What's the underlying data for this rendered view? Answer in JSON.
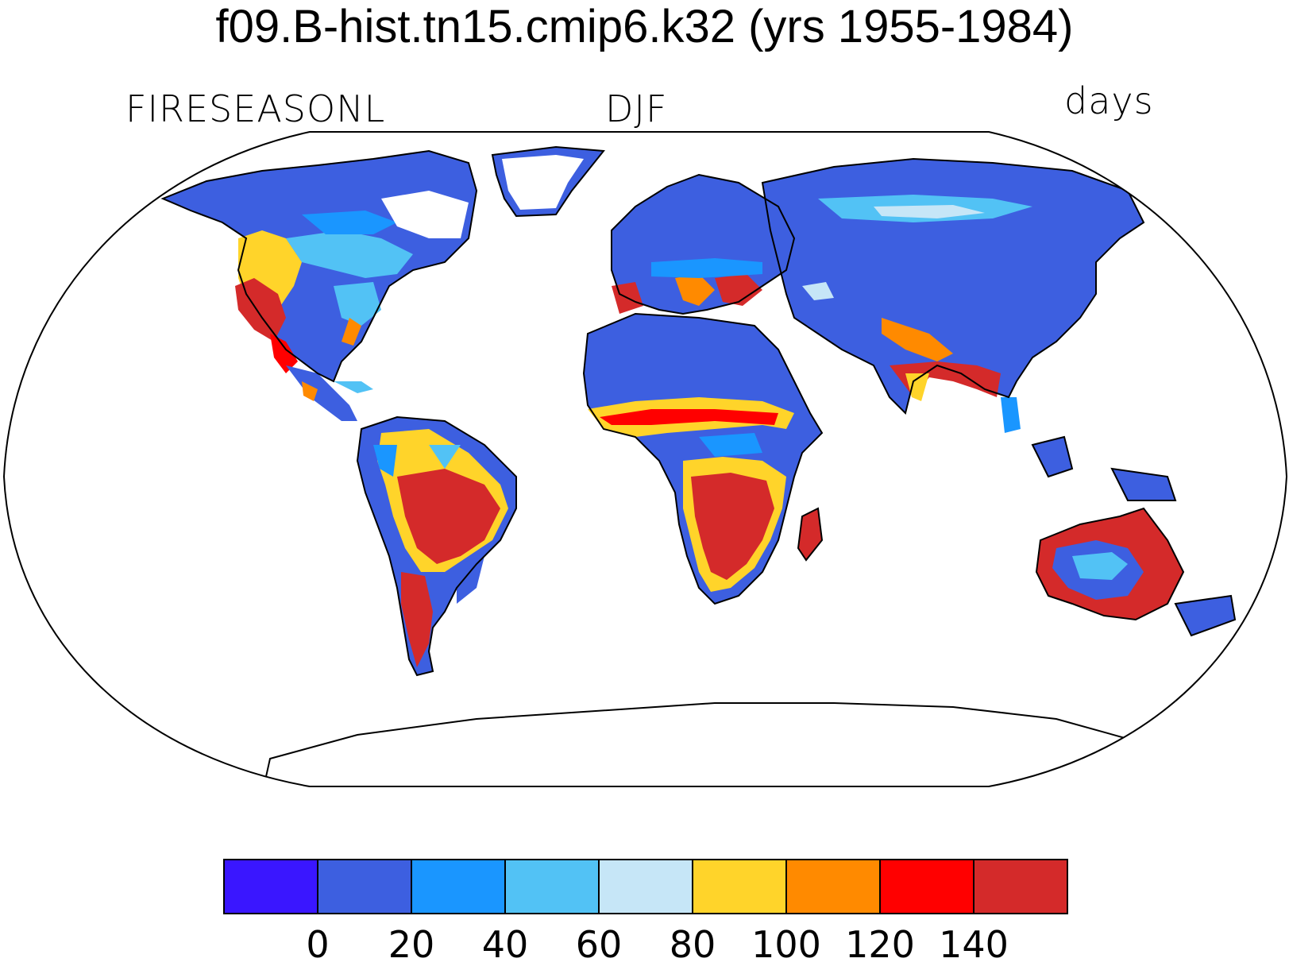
{
  "title": "f09.B-hist.tn15.cmip6.k32 (yrs 1955-1984)",
  "variable_label": "FIRESEASONL",
  "season_label": "DJF",
  "units_label": "days",
  "projection": "Robinson",
  "colorbar": {
    "levels": [
      "0",
      "20",
      "40",
      "60",
      "80",
      "100",
      "120",
      "140"
    ],
    "colors": [
      "#3a16ff",
      "#3d5fe0",
      "#1a96ff",
      "#52c2f5",
      "#c6e6f7",
      "#ffd42a",
      "#ff8a00",
      "#ff0000",
      "#d42a2a"
    ]
  },
  "colors": {
    "ocean": "#ffffff",
    "coastline": "#000000",
    "ice_sheet": "#ffffff"
  }
}
